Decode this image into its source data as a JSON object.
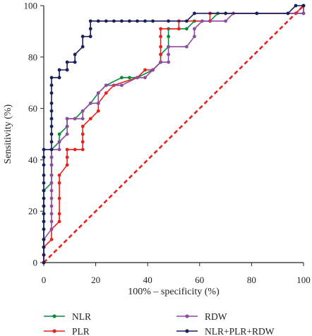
{
  "chart_data": {
    "type": "line",
    "title": "",
    "xlabel": "100% – specificity (%)",
    "ylabel": "Sensitivity (%)",
    "xlim": [
      0,
      100
    ],
    "ylim": [
      0,
      100
    ],
    "x_ticks": [
      "0",
      "20",
      "40",
      "60",
      "80",
      "100"
    ],
    "y_ticks": [
      "0",
      "20",
      "40",
      "60",
      "80",
      "100"
    ],
    "grid": false,
    "legend_position": "bottom",
    "reference_line": {
      "from": [
        0,
        0
      ],
      "to": [
        100,
        100
      ],
      "color": "#e8211c",
      "style": "dashed"
    },
    "series": [
      {
        "name": "NLR",
        "color": "#0b8a3e",
        "points": [
          [
            0,
            0
          ],
          [
            0,
            3
          ],
          [
            0,
            6
          ],
          [
            0,
            9
          ],
          [
            0,
            13
          ],
          [
            0,
            16
          ],
          [
            0,
            19
          ],
          [
            0,
            22
          ],
          [
            0,
            25
          ],
          [
            0,
            28
          ],
          [
            3,
            31
          ],
          [
            3,
            34
          ],
          [
            3,
            38
          ],
          [
            3,
            41
          ],
          [
            3,
            44
          ],
          [
            6,
            47
          ],
          [
            6,
            50
          ],
          [
            9,
            53
          ],
          [
            9,
            56
          ],
          [
            12,
            56
          ],
          [
            15,
            59
          ],
          [
            18,
            62
          ],
          [
            21,
            66
          ],
          [
            24,
            69
          ],
          [
            30,
            72
          ],
          [
            33,
            72
          ],
          [
            36,
            72
          ],
          [
            42,
            75
          ],
          [
            45,
            78
          ],
          [
            45,
            81
          ],
          [
            48,
            84
          ],
          [
            48,
            88
          ],
          [
            48,
            91
          ],
          [
            55,
            91
          ],
          [
            58,
            94
          ],
          [
            64,
            94
          ],
          [
            67,
            97
          ],
          [
            100,
            97
          ],
          [
            100,
            100
          ]
        ]
      },
      {
        "name": "PLR",
        "color": "#e8211c",
        "points": [
          [
            0,
            0
          ],
          [
            0,
            3
          ],
          [
            0,
            6
          ],
          [
            3,
            9
          ],
          [
            3,
            13
          ],
          [
            6,
            16
          ],
          [
            6,
            19
          ],
          [
            6,
            25
          ],
          [
            6,
            31
          ],
          [
            6,
            34
          ],
          [
            9,
            38
          ],
          [
            9,
            41
          ],
          [
            9,
            44
          ],
          [
            12,
            44
          ],
          [
            15,
            44
          ],
          [
            15,
            47
          ],
          [
            15,
            50
          ],
          [
            15,
            53
          ],
          [
            18,
            56
          ],
          [
            21,
            59
          ],
          [
            21,
            62
          ],
          [
            24,
            66
          ],
          [
            27,
            69
          ],
          [
            36,
            72
          ],
          [
            39,
            75
          ],
          [
            42,
            75
          ],
          [
            45,
            78
          ],
          [
            45,
            81
          ],
          [
            45,
            84
          ],
          [
            45,
            88
          ],
          [
            45,
            91
          ],
          [
            52,
            91
          ],
          [
            52,
            94
          ],
          [
            64,
            94
          ],
          [
            64,
            97
          ],
          [
            97,
            97
          ],
          [
            100,
            100
          ]
        ]
      },
      {
        "name": "RDW",
        "color": "#8f4b9f",
        "points": [
          [
            0,
            0
          ],
          [
            0,
            3
          ],
          [
            0,
            6
          ],
          [
            0,
            9
          ],
          [
            3,
            13
          ],
          [
            3,
            16
          ],
          [
            3,
            19
          ],
          [
            3,
            22
          ],
          [
            3,
            25
          ],
          [
            3,
            28
          ],
          [
            3,
            31
          ],
          [
            3,
            34
          ],
          [
            3,
            38
          ],
          [
            3,
            41
          ],
          [
            3,
            44
          ],
          [
            6,
            44
          ],
          [
            6,
            47
          ],
          [
            9,
            50
          ],
          [
            9,
            53
          ],
          [
            9,
            56
          ],
          [
            12,
            56
          ],
          [
            15,
            56
          ],
          [
            15,
            59
          ],
          [
            18,
            62
          ],
          [
            21,
            62
          ],
          [
            21,
            66
          ],
          [
            24,
            69
          ],
          [
            30,
            69
          ],
          [
            36,
            72
          ],
          [
            39,
            72
          ],
          [
            42,
            75
          ],
          [
            45,
            78
          ],
          [
            48,
            78
          ],
          [
            48,
            81
          ],
          [
            48,
            84
          ],
          [
            55,
            84
          ],
          [
            58,
            88
          ],
          [
            58,
            91
          ],
          [
            61,
            94
          ],
          [
            70,
            94
          ],
          [
            73,
            97
          ],
          [
            100,
            97
          ],
          [
            100,
            100
          ]
        ]
      },
      {
        "name": "NLR+PLR+RDW",
        "color": "#1a1f5c",
        "points": [
          [
            0,
            0
          ],
          [
            0,
            3
          ],
          [
            0,
            6
          ],
          [
            0,
            9
          ],
          [
            0,
            13
          ],
          [
            0,
            16
          ],
          [
            0,
            19
          ],
          [
            0,
            22
          ],
          [
            0,
            25
          ],
          [
            0,
            28
          ],
          [
            0,
            31
          ],
          [
            0,
            34
          ],
          [
            0,
            38
          ],
          [
            0,
            41
          ],
          [
            0,
            44
          ],
          [
            3,
            44
          ],
          [
            3,
            47
          ],
          [
            3,
            50
          ],
          [
            3,
            53
          ],
          [
            3,
            56
          ],
          [
            3,
            59
          ],
          [
            3,
            62
          ],
          [
            3,
            66
          ],
          [
            3,
            69
          ],
          [
            3,
            72
          ],
          [
            6,
            72
          ],
          [
            6,
            75
          ],
          [
            9,
            75
          ],
          [
            9,
            78
          ],
          [
            12,
            78
          ],
          [
            12,
            81
          ],
          [
            15,
            84
          ],
          [
            15,
            88
          ],
          [
            18,
            88
          ],
          [
            18,
            91
          ],
          [
            18,
            94
          ],
          [
            21,
            94
          ],
          [
            24,
            94
          ],
          [
            27,
            94
          ],
          [
            30,
            94
          ],
          [
            33,
            94
          ],
          [
            36,
            94
          ],
          [
            39,
            94
          ],
          [
            42,
            94
          ],
          [
            48,
            94
          ],
          [
            55,
            94
          ],
          [
            58,
            97
          ],
          [
            70,
            97
          ],
          [
            82,
            97
          ],
          [
            94,
            97
          ],
          [
            97,
            100
          ],
          [
            100,
            100
          ]
        ]
      }
    ]
  }
}
